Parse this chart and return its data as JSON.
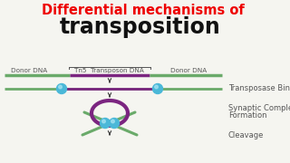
{
  "title_line1": "Differential mechanisms of",
  "title_line2": "transposition",
  "title_color": "#ee0000",
  "title2_color": "#111111",
  "bg_color": "#f5f5f0",
  "dna_green": "#6aaa6a",
  "dna_purple": "#7b2580",
  "ball_color": "#4ab8d8",
  "ball_highlight": "#a0e0f0",
  "label_transposase": "Transposase Binding",
  "label_synaptic_1": "Synaptic Complex",
  "label_synaptic_2": "Formation",
  "label_cleavage": "Cleavage",
  "label_donor1": "Donor DNA",
  "label_tn5": "Tn5  Transposon DNA",
  "label_donor2": "Donor DNA",
  "text_color": "#555555",
  "font_size_title1": 10.5,
  "font_size_title2": 17,
  "font_size_labels": 6.0,
  "font_size_dna_labels": 5.2
}
